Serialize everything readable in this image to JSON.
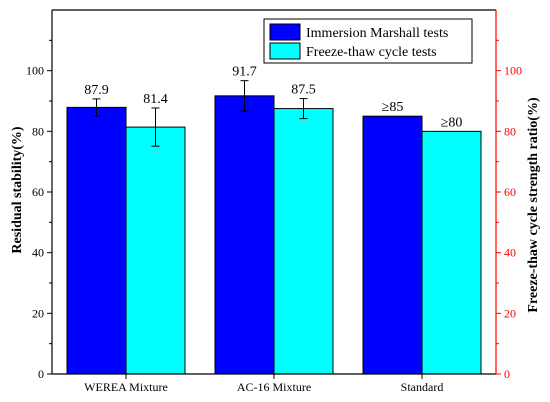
{
  "chart_data": {
    "type": "bar",
    "categories": [
      "WEREA Mixture",
      "AC-16 Mixture",
      "Standard"
    ],
    "series": [
      {
        "name": "Immersion Marshall tests",
        "values": [
          87.9,
          91.7,
          85
        ],
        "errors": [
          2.8,
          5.0,
          null
        ],
        "labels": [
          "87.9",
          "91.7",
          "≥85"
        ],
        "color": "#0000ff"
      },
      {
        "name": "Freeze-thaw cycle tests",
        "values": [
          81.4,
          87.5,
          80
        ],
        "errors": [
          6.3,
          3.3,
          null
        ],
        "labels": [
          "81.4",
          "87.5",
          "≥80"
        ],
        "color": "#00ffff"
      }
    ],
    "ylabel": "Residual stability(%)",
    "y2label": "Freeze-thaw cycle strength ratio(%)",
    "ylim": [
      0,
      120
    ],
    "yticks": [
      0,
      20,
      40,
      60,
      80,
      100
    ],
    "y2ticks": [
      0,
      20,
      40,
      60,
      80,
      100
    ],
    "y2_color": "#ff0000",
    "legend_position": "top-right",
    "grid": false
  }
}
